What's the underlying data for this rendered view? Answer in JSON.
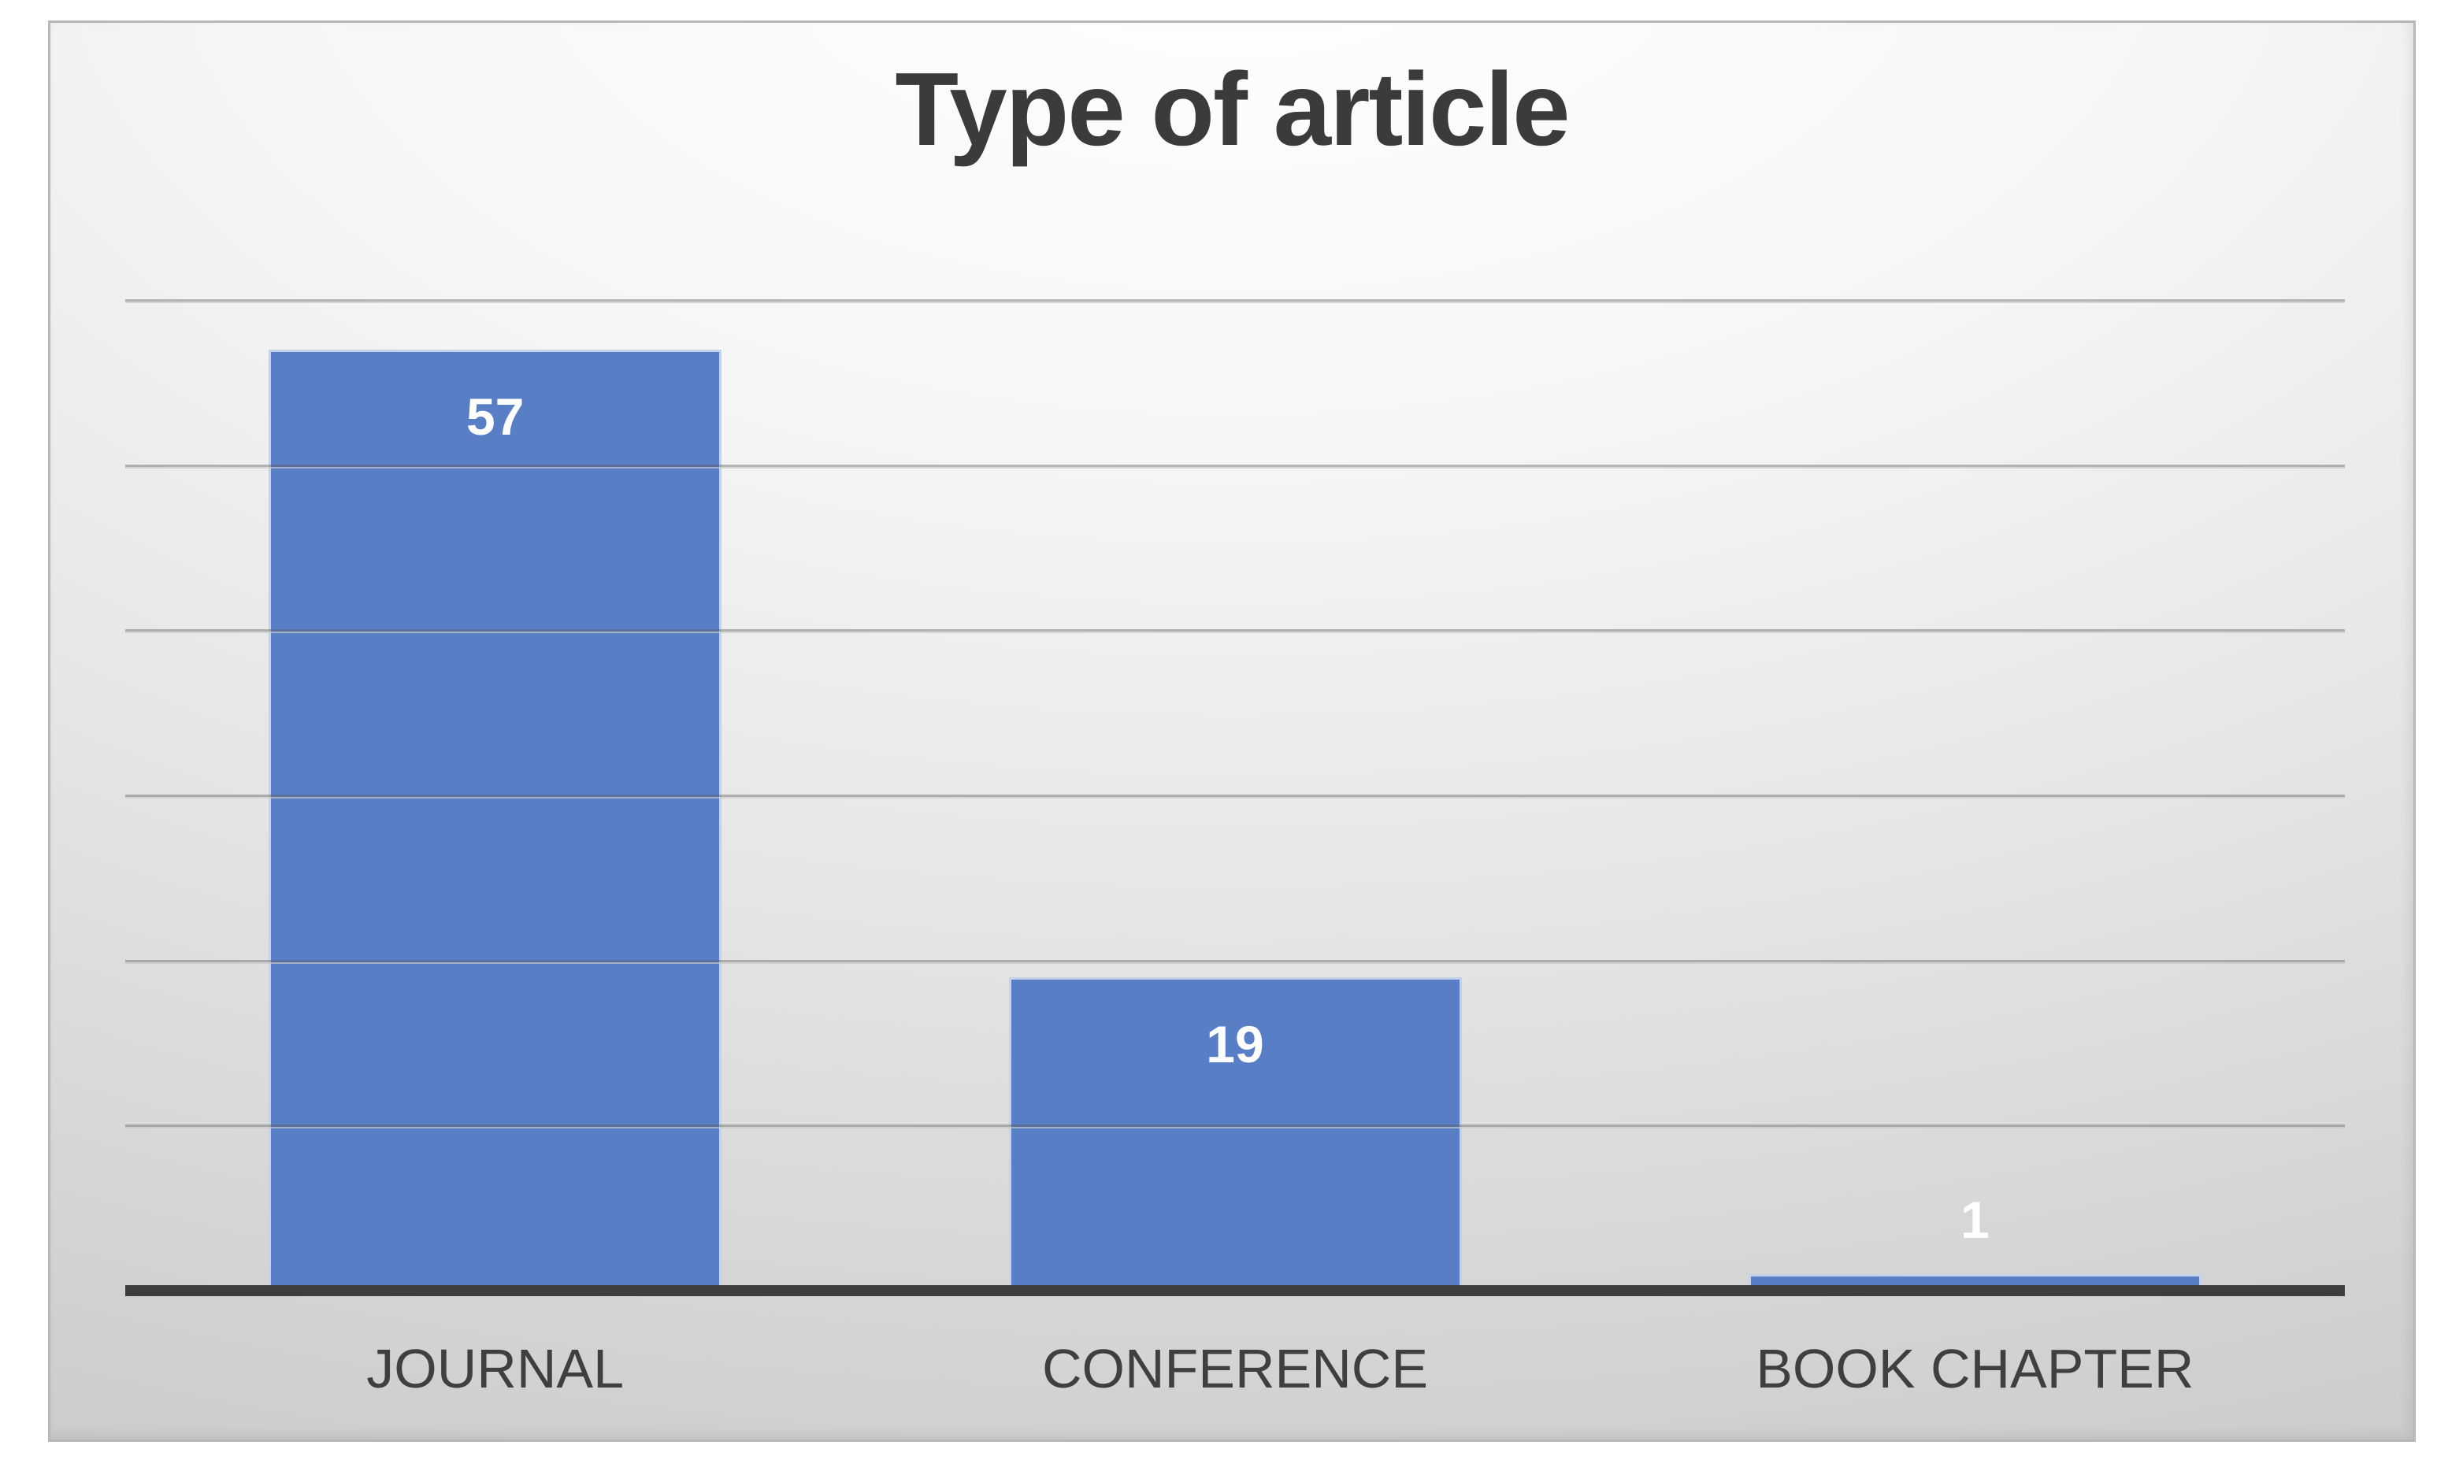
{
  "page": {
    "background": "#ffffff"
  },
  "chart": {
    "colors": {
      "title": "#3b3b3b",
      "panel_border": "#b7b7b7",
      "bar_fill": "#587EC6",
      "bar_edge_highlight": "rgba(255,255,255,0.65)",
      "gridline": "rgba(95,95,95,0.42)",
      "axis_line": "#3e3e3e",
      "value_label": "#ffffff",
      "category_label": "#3f3f3f"
    }
  },
  "chart_data": {
    "type": "bar",
    "title": "Type of article",
    "categories": [
      "JOURNAL",
      "CONFERENCE",
      "BOOK CHAPTER"
    ],
    "values": [
      57,
      19,
      1
    ],
    "xlabel": "",
    "ylabel": "",
    "ylim": [
      0,
      60
    ],
    "gridline_step": 10,
    "grid": true,
    "legend": false,
    "data_labels": true,
    "data_label_placement": "inside-end (outside-end when bar too short)"
  }
}
